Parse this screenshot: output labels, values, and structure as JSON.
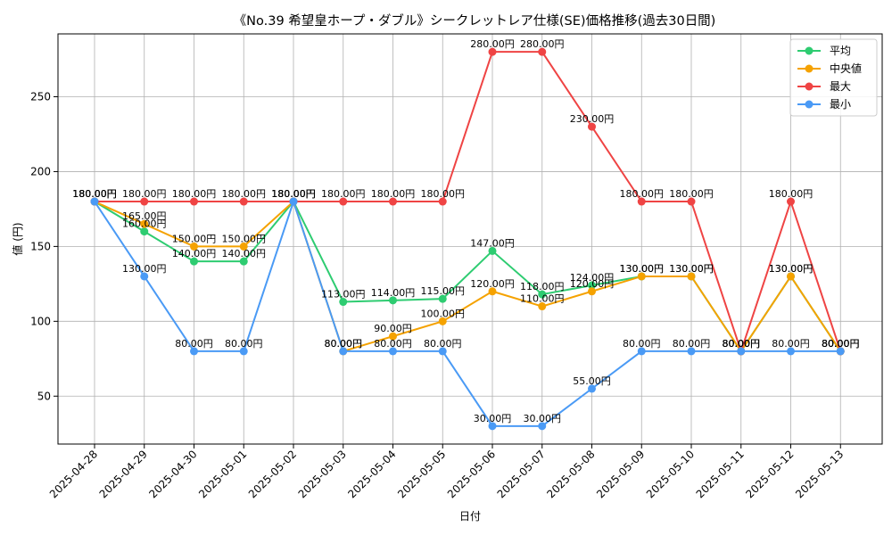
{
  "chart_data": {
    "type": "line",
    "title": "《No.39 希望皇ホープ・ダブル》シークレットレア仕様(SE)価格推移(過去30日間)",
    "xlabel": "日付",
    "ylabel": "値 (円)",
    "ylim": [
      18,
      292
    ],
    "yticks": [
      50,
      100,
      150,
      200,
      250
    ],
    "grid": true,
    "legend_position": "top-right",
    "categories": [
      "2025-04-28",
      "2025-04-29",
      "2025-04-30",
      "2025-05-01",
      "2025-05-02",
      "2025-05-03",
      "2025-05-04",
      "2025-05-05",
      "2025-05-06",
      "2025-05-07",
      "2025-05-08",
      "2025-05-09",
      "2025-05-10",
      "2025-05-11",
      "2025-05-12",
      "2025-05-13"
    ],
    "series": [
      {
        "name": "平均",
        "color": "#2ecc71",
        "values": [
          180,
          160,
          140,
          140,
          180,
          113,
          114,
          115,
          147,
          118,
          124,
          130,
          130,
          80,
          130,
          80
        ],
        "labels": [
          "180.00円",
          "160.00円",
          "140.00円",
          "140.00円",
          "180.00円",
          "113.00円",
          "114.00円",
          "115.00円",
          "147.00円",
          "118.00円",
          "124.00円",
          "130.00円",
          "130.00円",
          "80.00円",
          "130.00円",
          "80.00円"
        ]
      },
      {
        "name": "中央値",
        "color": "#f5a200",
        "values": [
          180,
          165,
          150,
          150,
          180,
          80,
          90,
          100,
          120,
          110,
          120,
          130,
          130,
          80,
          130,
          80
        ],
        "labels": [
          "180.00円",
          "165.00円",
          "150.00円",
          "150.00円",
          "180.00円",
          "80.00円",
          "90.00円",
          "100.00円",
          "120.00円",
          "110.00円",
          "120.00円",
          "130.00円",
          "130.00円",
          "80.00円",
          "130.00円",
          "80.00円"
        ]
      },
      {
        "name": "最大",
        "color": "#ef4444",
        "values": [
          180,
          180,
          180,
          180,
          180,
          180,
          180,
          180,
          280,
          280,
          230,
          180,
          180,
          80,
          180,
          80
        ],
        "labels": [
          "180.00円",
          "180.00円",
          "180.00円",
          "180.00円",
          "180.00円",
          "180.00円",
          "180.00円",
          "180.00円",
          "280.00円",
          "280.00円",
          "230.00円",
          "180.00円",
          "180.00円",
          "80.00円",
          "180.00円",
          "80.00円"
        ]
      },
      {
        "name": "最小",
        "color": "#4a9af5",
        "values": [
          180,
          130,
          80,
          80,
          180,
          80,
          80,
          80,
          30,
          30,
          55,
          80,
          80,
          80,
          80,
          80
        ],
        "labels": [
          "180.00円",
          "130.00円",
          "80.00円",
          "80.00円",
          "180.00円",
          "80.00円",
          "80.00円",
          "80.00円",
          "30.00円",
          "30.00円",
          "55.00円",
          "80.00円",
          "80.00円",
          "80.00円",
          "80.00円",
          "80.00円"
        ]
      }
    ]
  }
}
